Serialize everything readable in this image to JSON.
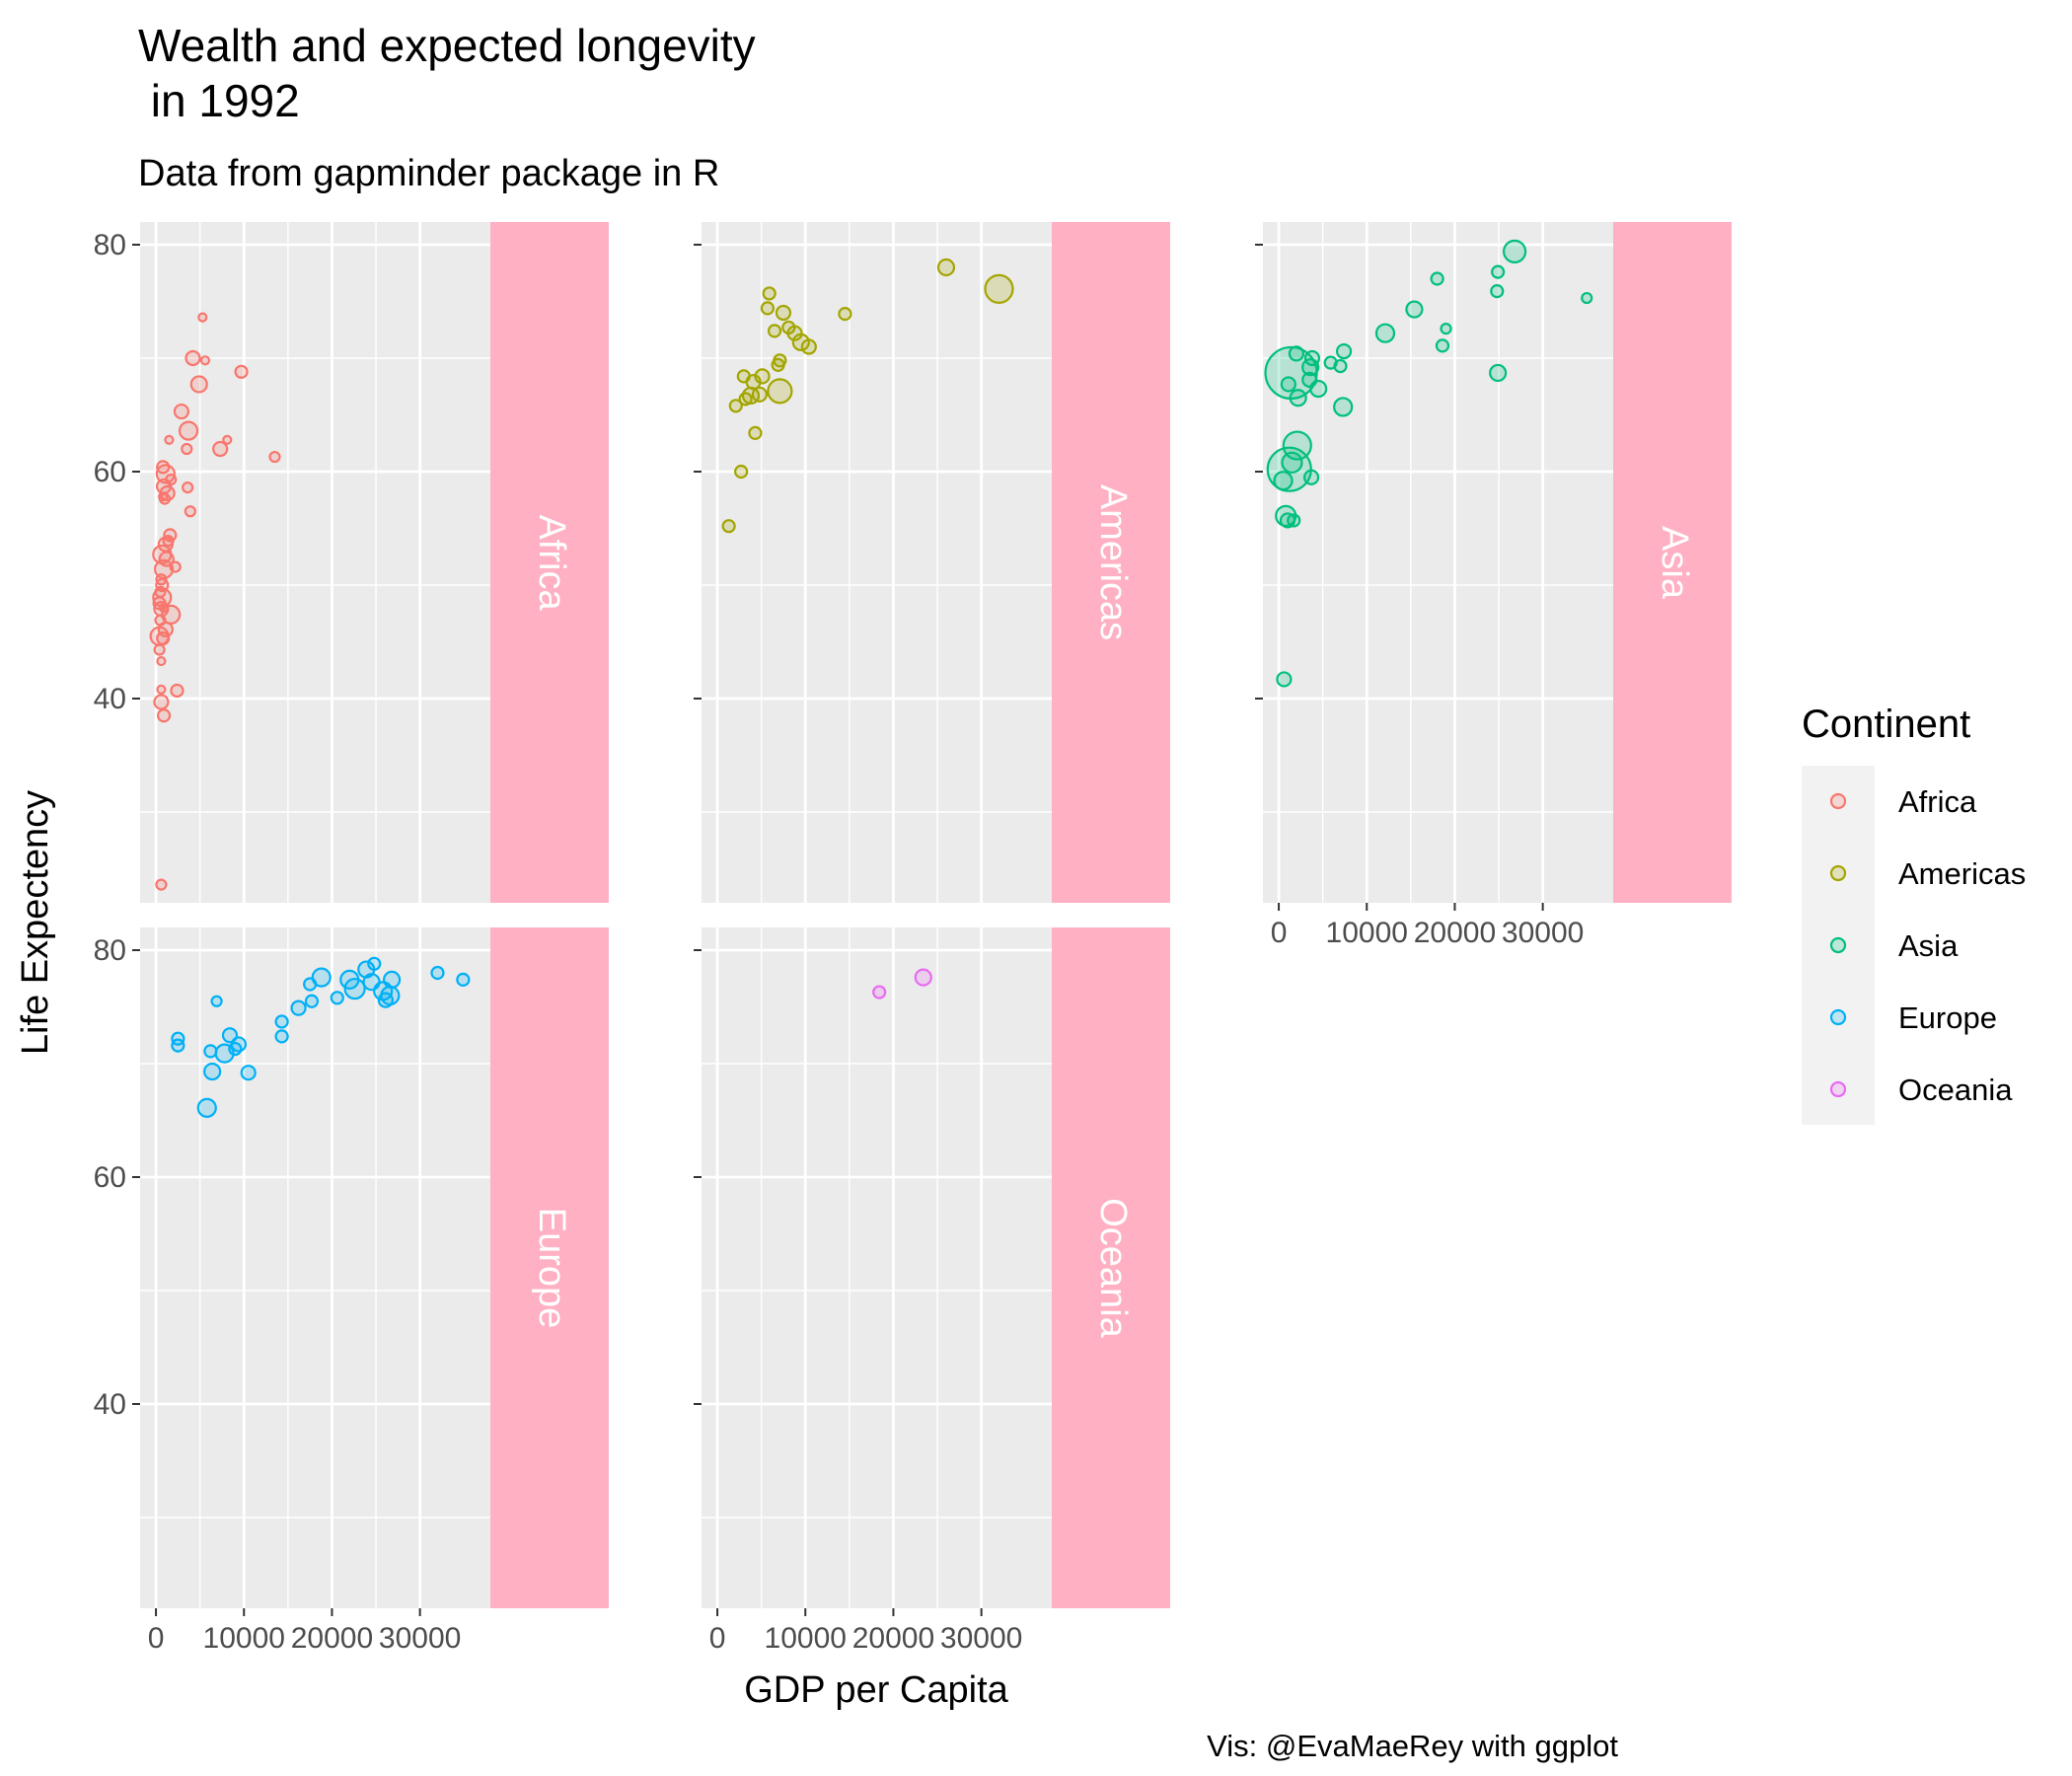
{
  "chart_data": {
    "type": "scatter",
    "title_line1": "Wealth and expected longevity",
    "title_line2": " in 1992",
    "subtitle": "Data from gapminder package in R",
    "xlabel": "GDP per Capita",
    "ylabel": "Life Expectency",
    "caption": "Vis: @EvaMaeRey with ggplot",
    "xlim": [
      -1800,
      38000
    ],
    "ylim": [
      22,
      82
    ],
    "x_ticks": [
      0,
      10000,
      20000,
      30000
    ],
    "x_tick_labels": [
      "0",
      "10000",
      "20000",
      "30000"
    ],
    "y_ticks": [
      40,
      60,
      80
    ],
    "y_tick_labels": [
      "40",
      "60",
      "80"
    ],
    "grid": true,
    "facet_strip_position": "right",
    "strip_color": "#ffb0c2",
    "legend": {
      "title": "Continent",
      "position": "right",
      "entries": [
        {
          "label": "Africa",
          "color": "#F8766D"
        },
        {
          "label": "Americas",
          "color": "#A3A500"
        },
        {
          "label": "Asia",
          "color": "#00BF7D"
        },
        {
          "label": "Europe",
          "color": "#00B0F6"
        },
        {
          "label": "Oceania",
          "color": "#E76BF3"
        }
      ]
    },
    "panels": [
      {
        "name": "Africa",
        "color": "#F8766D",
        "points": [
          [
            5300,
            73.6
          ],
          [
            4200,
            70.0
          ],
          [
            5600,
            69.8
          ],
          [
            9700,
            68.8
          ],
          [
            4900,
            67.7
          ],
          [
            2900,
            65.3
          ],
          [
            3700,
            63.6
          ],
          [
            8100,
            62.8
          ],
          [
            7300,
            62.0
          ],
          [
            1500,
            62.8
          ],
          [
            3500,
            62.0
          ],
          [
            13500,
            61.3
          ],
          [
            800,
            60.4
          ],
          [
            1100,
            59.8
          ],
          [
            1700,
            59.3
          ],
          [
            900,
            58.7
          ],
          [
            3600,
            58.6
          ],
          [
            1300,
            58.1
          ],
          [
            800,
            57.8
          ],
          [
            1000,
            57.6
          ],
          [
            3900,
            56.5
          ],
          [
            1600,
            54.4
          ],
          [
            1400,
            53.9
          ],
          [
            1100,
            53.6
          ],
          [
            700,
            52.7
          ],
          [
            1200,
            52.3
          ],
          [
            2200,
            51.6
          ],
          [
            900,
            51.4
          ],
          [
            600,
            50.5
          ],
          [
            700,
            50.0
          ],
          [
            500,
            49.4
          ],
          [
            700,
            48.9
          ],
          [
            400,
            48.4
          ],
          [
            900,
            48.0
          ],
          [
            600,
            47.9
          ],
          [
            1700,
            47.4
          ],
          [
            500,
            46.9
          ],
          [
            1100,
            46.1
          ],
          [
            400,
            45.5
          ],
          [
            800,
            45.3
          ],
          [
            400,
            44.3
          ],
          [
            600,
            43.3
          ],
          [
            600,
            40.8
          ],
          [
            2400,
            40.7
          ],
          [
            600,
            39.7
          ],
          [
            900,
            38.5
          ],
          [
            600,
            23.6
          ]
        ],
        "sizes": [
          4,
          7,
          4,
          6,
          8,
          7,
          9,
          4,
          7,
          4,
          5,
          5,
          6,
          9,
          5,
          7,
          5,
          7,
          4,
          5,
          5,
          6,
          5,
          7,
          9,
          7,
          5,
          9,
          5,
          6,
          5,
          9,
          6,
          4,
          7,
          9,
          5,
          7,
          9,
          6,
          5,
          4,
          4,
          6,
          7,
          6,
          5
        ]
      },
      {
        "name": "Americas",
        "color": "#A3A500",
        "points": [
          [
            26000,
            78.0
          ],
          [
            32000,
            76.1
          ],
          [
            5900,
            75.7
          ],
          [
            5700,
            74.4
          ],
          [
            7500,
            74.0
          ],
          [
            14500,
            73.9
          ],
          [
            8100,
            72.7
          ],
          [
            6500,
            72.4
          ],
          [
            8800,
            72.2
          ],
          [
            9500,
            71.4
          ],
          [
            10400,
            71.0
          ],
          [
            7100,
            69.8
          ],
          [
            6900,
            69.4
          ],
          [
            3000,
            68.4
          ],
          [
            5100,
            68.4
          ],
          [
            4100,
            67.9
          ],
          [
            7100,
            67.1
          ],
          [
            4800,
            66.8
          ],
          [
            3800,
            66.7
          ],
          [
            3200,
            66.4
          ],
          [
            2100,
            65.8
          ],
          [
            4300,
            63.4
          ],
          [
            2700,
            60.0
          ],
          [
            1300,
            55.2
          ]
        ],
        "sizes": [
          8,
          14,
          6,
          6,
          7,
          6,
          6,
          6,
          7,
          8,
          7,
          6,
          6,
          6,
          7,
          7,
          12,
          7,
          8,
          6,
          6,
          6,
          6,
          6
        ]
      },
      {
        "name": "Asia",
        "color": "#00BF7D",
        "points": [
          [
            26800,
            79.4
          ],
          [
            18000,
            77.0
          ],
          [
            24900,
            77.6
          ],
          [
            24800,
            75.9
          ],
          [
            35000,
            75.3
          ],
          [
            15400,
            74.3
          ],
          [
            12100,
            72.2
          ],
          [
            19000,
            72.6
          ],
          [
            18600,
            71.1
          ],
          [
            7400,
            70.6
          ],
          [
            1400,
            68.7
          ],
          [
            2000,
            70.4
          ],
          [
            3800,
            70.0
          ],
          [
            5900,
            69.6
          ],
          [
            3600,
            69.2
          ],
          [
            7000,
            69.3
          ],
          [
            3500,
            68.1
          ],
          [
            1100,
            67.7
          ],
          [
            4500,
            67.3
          ],
          [
            24900,
            68.7
          ],
          [
            2200,
            66.5
          ],
          [
            7300,
            65.7
          ],
          [
            2100,
            62.3
          ],
          [
            1500,
            60.8
          ],
          [
            1200,
            60.2
          ],
          [
            3700,
            59.5
          ],
          [
            500,
            59.2
          ],
          [
            800,
            56.1
          ],
          [
            1000,
            55.7
          ],
          [
            1700,
            55.7
          ],
          [
            600,
            41.7
          ]
        ],
        "sizes": [
          11,
          6,
          6,
          6,
          5,
          8,
          9,
          5,
          6,
          7,
          26,
          7,
          7,
          6,
          8,
          6,
          7,
          7,
          8,
          8,
          8,
          9,
          14,
          10,
          22,
          7,
          9,
          10,
          7,
          6,
          7
        ]
      },
      {
        "name": "Europe",
        "color": "#00B0F6",
        "points": [
          [
            24800,
            78.8
          ],
          [
            23900,
            78.3
          ],
          [
            32000,
            78.0
          ],
          [
            18800,
            77.6
          ],
          [
            22000,
            77.4
          ],
          [
            26800,
            77.4
          ],
          [
            34900,
            77.4
          ],
          [
            17500,
            77.0
          ],
          [
            24500,
            77.2
          ],
          [
            22600,
            76.6
          ],
          [
            25800,
            76.4
          ],
          [
            26600,
            76.0
          ],
          [
            26100,
            75.6
          ],
          [
            20600,
            75.8
          ],
          [
            17700,
            75.5
          ],
          [
            6900,
            75.5
          ],
          [
            16200,
            74.9
          ],
          [
            14300,
            73.7
          ],
          [
            14300,
            72.4
          ],
          [
            2500,
            72.2
          ],
          [
            8400,
            72.5
          ],
          [
            2500,
            71.6
          ],
          [
            9400,
            71.7
          ],
          [
            9000,
            71.3
          ],
          [
            6200,
            71.1
          ],
          [
            7800,
            70.9
          ],
          [
            6400,
            69.3
          ],
          [
            10500,
            69.2
          ],
          [
            5800,
            66.1
          ]
        ],
        "sizes": [
          6,
          8,
          6,
          9,
          9,
          8,
          6,
          6,
          8,
          10,
          9,
          9,
          7,
          6,
          6,
          5,
          7,
          6,
          6,
          6,
          7,
          6,
          7,
          6,
          6,
          9,
          8,
          7,
          9
        ]
      },
      {
        "name": "Oceania",
        "color": "#E76BF3",
        "points": [
          [
            23400,
            77.6
          ],
          [
            18400,
            76.3
          ]
        ],
        "sizes": [
          8,
          6
        ]
      }
    ]
  }
}
